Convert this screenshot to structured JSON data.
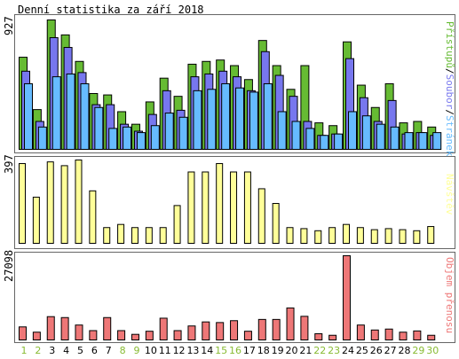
{
  "title": "Denní statistika za září 2018",
  "colors": {
    "hits": "#66bb33",
    "files": "#7777ee",
    "pages": "#66bbff",
    "visits": "#ffff99",
    "kbytes": "#ee7777",
    "weekday_label": "#000000",
    "weekend_label": "#88bb33",
    "panel_border": "#666666"
  },
  "panels": {
    "top": {
      "ymax": "927",
      "legend": {
        "hits": "Přístupů",
        "sep1": "/",
        "files": "Soubor",
        "sep2": "/",
        "pages": "Stránek"
      }
    },
    "middle": {
      "ymax": "397",
      "legend": "Návštěv"
    },
    "bottom": {
      "ymax": "27098",
      "legend": "Objem přenosu"
    }
  },
  "chart_data": {
    "type": "bar",
    "title": "Denní statistika za září 2018",
    "categories": [
      "1",
      "2",
      "3",
      "4",
      "5",
      "6",
      "7",
      "8",
      "9",
      "10",
      "11",
      "12",
      "13",
      "14",
      "15",
      "16",
      "17",
      "18",
      "19",
      "20",
      "21",
      "22",
      "23",
      "24",
      "25",
      "26",
      "27",
      "28",
      "29",
      "30"
    ],
    "weekend_days": [
      "1",
      "2",
      "8",
      "9",
      "15",
      "16",
      "22",
      "23",
      "29",
      "30"
    ],
    "series": [
      {
        "name": "Přístupů",
        "panel": "top",
        "values": [
          660,
          285,
          927,
          820,
          630,
          400,
          390,
          270,
          180,
          340,
          510,
          380,
          610,
          630,
          640,
          600,
          500,
          780,
          600,
          430,
          600,
          190,
          170,
          770,
          460,
          300,
          470,
          190,
          200,
          160
        ]
      },
      {
        "name": "Soubor",
        "panel": "top",
        "values": [
          560,
          200,
          800,
          730,
          550,
          320,
          320,
          180,
          130,
          250,
          420,
          280,
          520,
          540,
          560,
          520,
          420,
          700,
          530,
          380,
          200,
          100,
          110,
          650,
          370,
          200,
          350,
          110,
          120,
          100
        ]
      },
      {
        "name": "Stránek",
        "panel": "top",
        "values": [
          470,
          160,
          520,
          540,
          470,
          300,
          150,
          160,
          120,
          170,
          260,
          230,
          420,
          430,
          470,
          440,
          410,
          470,
          270,
          200,
          150,
          100,
          110,
          270,
          240,
          180,
          160,
          120,
          120,
          120
        ]
      },
      {
        "name": "Návštěv",
        "panel": "middle",
        "values": [
          380,
          220,
          388,
          370,
          397,
          250,
          75,
          90,
          75,
          75,
          75,
          180,
          340,
          340,
          380,
          340,
          340,
          260,
          190,
          75,
          70,
          60,
          75,
          90,
          75,
          65,
          70,
          65,
          60,
          80
        ]
      },
      {
        "name": "Objem přenosu",
        "panel": "bottom",
        "values": [
          4200,
          2500,
          7500,
          7200,
          4800,
          3000,
          7200,
          3000,
          1800,
          2800,
          7000,
          3000,
          4500,
          5800,
          5600,
          6200,
          2800,
          6600,
          6600,
          10300,
          7600,
          2000,
          1500,
          27098,
          4800,
          3200,
          3500,
          2500,
          2900,
          1500
        ]
      }
    ]
  }
}
